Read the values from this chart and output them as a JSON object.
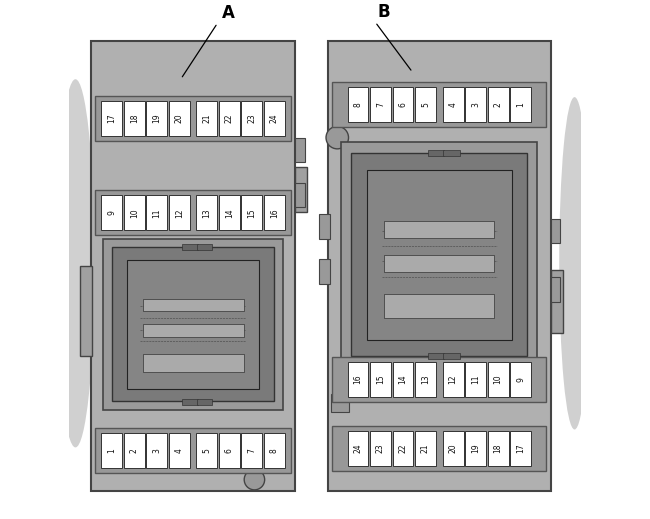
{
  "bg_color": "#ffffff",
  "panel_bg": "#b0b0b0",
  "fuse_bg": "#ffffff",
  "fuse_border": "#333333",
  "text_color": "#111111",
  "label_A": "A",
  "label_B": "B",
  "panel_A": {
    "top_row": [
      "17",
      "18",
      "19",
      "20",
      "21",
      "22",
      "23",
      "24"
    ],
    "mid_row": [
      "9",
      "10",
      "11",
      "12",
      "13",
      "14",
      "15",
      "16"
    ],
    "bot_row": [
      "1",
      "2",
      "3",
      "4",
      "5",
      "6",
      "7",
      "8"
    ]
  },
  "panel_B": {
    "top_row": [
      "8",
      "7",
      "6",
      "5",
      "4",
      "3",
      "2",
      "1"
    ],
    "mid_row": [
      "16",
      "15",
      "14",
      "13",
      "12",
      "11",
      "10",
      "9"
    ],
    "bot_row": [
      "24",
      "23",
      "22",
      "21",
      "20",
      "19",
      "18",
      "17"
    ]
  }
}
